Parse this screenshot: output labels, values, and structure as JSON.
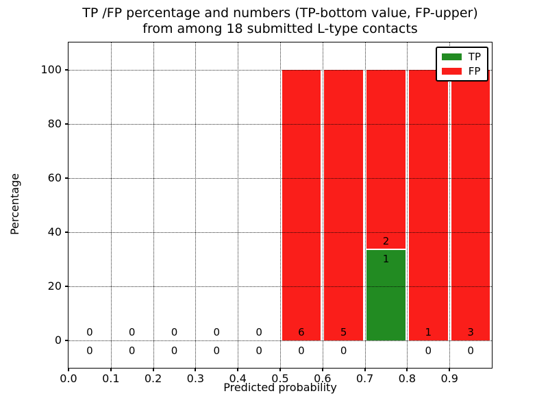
{
  "title": {
    "line1": "TP /FP percentage and numbers (TP-bottom value, FP-upper)",
    "line2": "from among 18 submitted L-type contacts"
  },
  "axes": {
    "ylabel": "Percentage",
    "xlabel": "Predicted probability"
  },
  "legend": {
    "items": [
      {
        "label": "TP",
        "color": "#228b22"
      },
      {
        "label": "FP",
        "color": "#fa1e1a"
      }
    ]
  },
  "chart_data": {
    "type": "bar",
    "stacked": true,
    "title": "TP /FP percentage and numbers (TP-bottom value, FP-upper) from among 18 submitted L-type contacts",
    "xlabel": "Predicted probability",
    "ylabel": "Percentage",
    "xlim": [
      0.0,
      1.0
    ],
    "ylim": [
      -10,
      110
    ],
    "grid": "dotted",
    "legend_position": "upper right",
    "total_submitted": 18,
    "bin_width": 0.1,
    "bin_left_edges": [
      0.0,
      0.1,
      0.2,
      0.3,
      0.4,
      0.5,
      0.6,
      0.7,
      0.8,
      0.9
    ],
    "series": [
      {
        "name": "TP",
        "color": "#228b22",
        "counts": [
          0,
          0,
          0,
          0,
          0,
          0,
          0,
          1,
          0,
          0
        ],
        "percent": [
          0,
          0,
          0,
          0,
          0,
          0,
          0,
          33.33,
          0,
          0
        ]
      },
      {
        "name": "FP",
        "color": "#fa1e1a",
        "counts": [
          0,
          0,
          0,
          0,
          0,
          6,
          5,
          2,
          1,
          3
        ],
        "percent": [
          0,
          0,
          0,
          0,
          0,
          100,
          100,
          66.67,
          100,
          100
        ]
      }
    ],
    "xtick_values": [
      0.0,
      0.1,
      0.2,
      0.3,
      0.4,
      0.5,
      0.6,
      0.7,
      0.8,
      0.9
    ],
    "xticks": [
      "0.0",
      "0.1",
      "0.2",
      "0.3",
      "0.4",
      "0.5",
      "0.6",
      "0.7",
      "0.8",
      "0.9"
    ],
    "ytick_values": [
      0,
      20,
      40,
      60,
      80,
      100
    ],
    "yticks": [
      "0",
      "20",
      "40",
      "60",
      "80",
      "100"
    ],
    "annotations": [
      {
        "x": 0.05,
        "y": 3.2,
        "text": "0"
      },
      {
        "x": 0.15,
        "y": 3.2,
        "text": "0"
      },
      {
        "x": 0.25,
        "y": 3.2,
        "text": "0"
      },
      {
        "x": 0.35,
        "y": 3.2,
        "text": "0"
      },
      {
        "x": 0.45,
        "y": 3.2,
        "text": "0"
      },
      {
        "x": 0.55,
        "y": 3.2,
        "text": "6"
      },
      {
        "x": 0.65,
        "y": 3.2,
        "text": "5"
      },
      {
        "x": 0.75,
        "y": 36.7,
        "text": "2"
      },
      {
        "x": 0.85,
        "y": 3.2,
        "text": "1"
      },
      {
        "x": 0.95,
        "y": 3.2,
        "text": "3"
      },
      {
        "x": 0.05,
        "y": -3.8,
        "text": "0"
      },
      {
        "x": 0.15,
        "y": -3.8,
        "text": "0"
      },
      {
        "x": 0.25,
        "y": -3.8,
        "text": "0"
      },
      {
        "x": 0.35,
        "y": -3.8,
        "text": "0"
      },
      {
        "x": 0.45,
        "y": -3.8,
        "text": "0"
      },
      {
        "x": 0.55,
        "y": -3.8,
        "text": "0"
      },
      {
        "x": 0.65,
        "y": -3.8,
        "text": "0"
      },
      {
        "x": 0.75,
        "y": 30.2,
        "text": "1"
      },
      {
        "x": 0.85,
        "y": -3.8,
        "text": "0"
      },
      {
        "x": 0.95,
        "y": -3.8,
        "text": "0"
      }
    ]
  }
}
